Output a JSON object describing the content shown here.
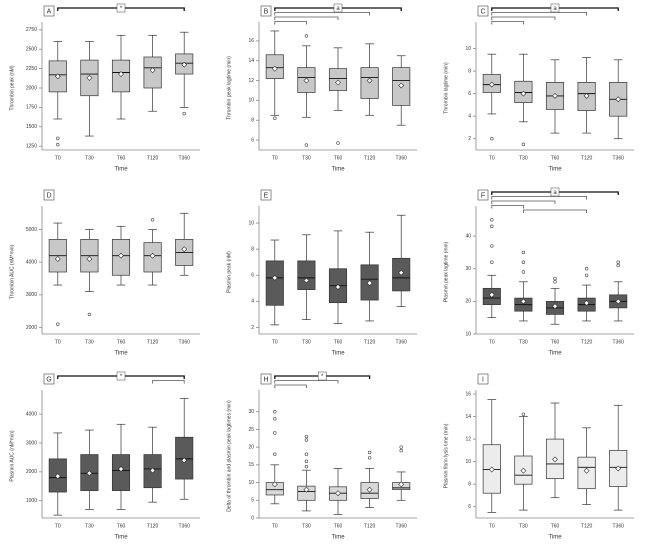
{
  "chart_data": [
    {
      "type": "box",
      "label": "A",
      "y_label": "Thrombin peak (nM)",
      "x_label": "Time",
      "categories": [
        "T0",
        "T30",
        "T60",
        "T120",
        "T360"
      ],
      "color": "#c8c8c8",
      "ylim": [
        1200,
        2800
      ],
      "yticks": [
        1250,
        1500,
        1750,
        2000,
        2250,
        2500,
        2750
      ],
      "boxes": [
        {
          "min": 1600,
          "q1": 1950,
          "median": 2170,
          "q3": 2350,
          "max": 2600,
          "mean": 2150,
          "outliers": [
            1350,
            1270
          ]
        },
        {
          "min": 1380,
          "q1": 1900,
          "median": 2180,
          "q3": 2360,
          "max": 2600,
          "mean": 2130,
          "outliers": []
        },
        {
          "min": 1600,
          "q1": 1950,
          "median": 2200,
          "q3": 2360,
          "max": 2680,
          "mean": 2180,
          "outliers": []
        },
        {
          "min": 1700,
          "q1": 2000,
          "median": 2260,
          "q3": 2400,
          "max": 2680,
          "mean": 2230,
          "outliers": []
        },
        {
          "min": 1750,
          "q1": 2180,
          "median": 2320,
          "q3": 2440,
          "max": 2720,
          "mean": 2300,
          "outliers": [
            1670
          ]
        }
      ],
      "significance": {
        "label": "*",
        "brackets": [
          [
            "T0",
            "T360"
          ]
        ]
      }
    },
    {
      "type": "box",
      "label": "B",
      "y_label": "Thrombin peak lagtime (min)",
      "x_label": "Time",
      "categories": [
        "T0",
        "T30",
        "T60",
        "T120",
        "T360"
      ],
      "color": "#c8c8c8",
      "ylim": [
        5,
        17.5
      ],
      "yticks": [
        6,
        8,
        10,
        12,
        14,
        16
      ],
      "boxes": [
        {
          "min": 8.5,
          "q1": 12.2,
          "median": 13.3,
          "q3": 14.6,
          "max": 17,
          "mean": 13.2,
          "outliers": [
            8.2
          ]
        },
        {
          "min": 8.3,
          "q1": 10.8,
          "median": 12.3,
          "q3": 13.3,
          "max": 15.5,
          "mean": 12,
          "outliers": [
            16.5,
            5.5
          ]
        },
        {
          "min": 9,
          "q1": 11,
          "median": 12.2,
          "q3": 13.2,
          "max": 15.3,
          "mean": 11.8,
          "outliers": [
            5.7
          ]
        },
        {
          "min": 8.5,
          "q1": 10.2,
          "median": 12.3,
          "q3": 13.3,
          "max": 15.7,
          "mean": 12,
          "outliers": []
        },
        {
          "min": 7.5,
          "q1": 9.5,
          "median": 12,
          "q3": 13.3,
          "max": 14.5,
          "mean": 11.5,
          "outliers": []
        }
      ],
      "significance": {
        "label": "a",
        "brackets": [
          [
            "T0",
            "T360"
          ],
          [
            "T0",
            "T120"
          ],
          [
            "T0",
            "T60"
          ],
          [
            "T0",
            "T30"
          ]
        ]
      }
    },
    {
      "type": "box",
      "label": "C",
      "y_label": "Thrombin lagtime (min)",
      "x_label": "Time",
      "categories": [
        "T0",
        "T30",
        "T60",
        "T120",
        "T360"
      ],
      "color": "#c8c8c8",
      "ylim": [
        1,
        12
      ],
      "yticks": [
        2,
        4,
        6,
        8,
        10
      ],
      "boxes": [
        {
          "min": 4.2,
          "q1": 6.1,
          "median": 6.8,
          "q3": 7.7,
          "max": 9.5,
          "mean": 6.8,
          "outliers": [
            2
          ]
        },
        {
          "min": 3.5,
          "q1": 5.2,
          "median": 6.1,
          "q3": 7.1,
          "max": 9.5,
          "mean": 6,
          "outliers": [
            1.5
          ]
        },
        {
          "min": 2.5,
          "q1": 4.6,
          "median": 5.8,
          "q3": 7,
          "max": 9,
          "mean": 5.8,
          "outliers": []
        },
        {
          "min": 2.5,
          "q1": 4.5,
          "median": 6,
          "q3": 7,
          "max": 9.2,
          "mean": 5.8,
          "outliers": []
        },
        {
          "min": 2,
          "q1": 4,
          "median": 5.5,
          "q3": 7,
          "max": 9,
          "mean": 5.5,
          "outliers": []
        }
      ],
      "significance": {
        "label": "a",
        "brackets": [
          [
            "T0",
            "T360"
          ],
          [
            "T0",
            "T120"
          ],
          [
            "T0",
            "T60"
          ],
          [
            "T0",
            "T30"
          ]
        ]
      }
    },
    {
      "type": "box",
      "label": "D",
      "y_label": "Thrombin AUC (nM*min)",
      "x_label": "Time",
      "categories": [
        "T0",
        "T30",
        "T60",
        "T120",
        "T360"
      ],
      "color": "#c8c8c8",
      "ylim": [
        1800,
        5600
      ],
      "yticks": [
        2000,
        3000,
        4000,
        5000
      ],
      "boxes": [
        {
          "min": 3300,
          "q1": 3700,
          "median": 4200,
          "q3": 4700,
          "max": 5200,
          "mean": 4100,
          "outliers": [
            2100
          ]
        },
        {
          "min": 3100,
          "q1": 3700,
          "median": 4200,
          "q3": 4700,
          "max": 5000,
          "mean": 4100,
          "outliers": [
            2400
          ]
        },
        {
          "min": 3300,
          "q1": 3600,
          "median": 4200,
          "q3": 4700,
          "max": 5100,
          "mean": 4200,
          "outliers": []
        },
        {
          "min": 3300,
          "q1": 3700,
          "median": 4200,
          "q3": 4600,
          "max": 5000,
          "mean": 4200,
          "outliers": [
            5300
          ]
        },
        {
          "min": 3600,
          "q1": 3900,
          "median": 4300,
          "q3": 4700,
          "max": 5500,
          "mean": 4400,
          "outliers": []
        }
      ]
    },
    {
      "type": "box",
      "label": "E",
      "y_label": "Plasmin peak (nM)",
      "x_label": "Time",
      "categories": [
        "T0",
        "T30",
        "T60",
        "T120",
        "T360"
      ],
      "color": "#5a5a5a",
      "ylim": [
        1.5,
        11
      ],
      "yticks": [
        2,
        4,
        6,
        8,
        10
      ],
      "boxes": [
        {
          "min": 2.2,
          "q1": 3.7,
          "median": 5.8,
          "q3": 7.1,
          "max": 8.7,
          "mean": 5.8,
          "outliers": []
        },
        {
          "min": 2.6,
          "q1": 4.9,
          "median": 5.8,
          "q3": 7.1,
          "max": 9.1,
          "mean": 5.6,
          "outliers": []
        },
        {
          "min": 2.3,
          "q1": 3.9,
          "median": 5.2,
          "q3": 6.5,
          "max": 9.4,
          "mean": 5.1,
          "outliers": []
        },
        {
          "min": 2.5,
          "q1": 4.1,
          "median": 5.7,
          "q3": 6.8,
          "max": 9.3,
          "mean": 5.4,
          "outliers": []
        },
        {
          "min": 3.6,
          "q1": 4.8,
          "median": 5.8,
          "q3": 7.3,
          "max": 10.6,
          "mean": 6.2,
          "outliers": []
        }
      ]
    },
    {
      "type": "box",
      "label": "F",
      "y_label": "Plasmin peak lagtime (min)",
      "x_label": "Time",
      "categories": [
        "T0",
        "T30",
        "T60",
        "T120",
        "T360"
      ],
      "color": "#5a5a5a",
      "ylim": [
        10,
        48
      ],
      "yticks": [
        10,
        20,
        30,
        40
      ],
      "boxes": [
        {
          "min": 15,
          "q1": 19,
          "median": 21,
          "q3": 24,
          "max": 28,
          "mean": 22,
          "outliers": [
            32,
            37,
            43,
            45
          ]
        },
        {
          "min": 14,
          "q1": 17,
          "median": 19,
          "q3": 21,
          "max": 26,
          "mean": 20,
          "outliers": [
            29,
            32,
            35
          ]
        },
        {
          "min": 13,
          "q1": 16,
          "median": 18,
          "q3": 20,
          "max": 24,
          "mean": 18.5,
          "outliers": [
            26,
            27
          ]
        },
        {
          "min": 14,
          "q1": 17,
          "median": 19,
          "q3": 21,
          "max": 25,
          "mean": 19.5,
          "outliers": [
            28,
            30
          ]
        },
        {
          "min": 14,
          "q1": 18,
          "median": 20,
          "q3": 22,
          "max": 26,
          "mean": 20,
          "outliers": [
            31,
            32
          ]
        }
      ],
      "significance": {
        "label": "a",
        "brackets": [
          [
            "T0",
            "T360"
          ],
          [
            "T0",
            "T120"
          ],
          [
            "T0",
            "T60"
          ],
          [
            "T0",
            "T30"
          ],
          [
            "T30",
            "T120"
          ]
        ]
      }
    },
    {
      "type": "box",
      "label": "G",
      "y_label": "Plasmin AUC (nM*min)",
      "x_label": "Time",
      "categories": [
        "T0",
        "T30",
        "T60",
        "T120",
        "T360"
      ],
      "color": "#5a5a5a",
      "ylim": [
        400,
        4700
      ],
      "yticks": [
        1000,
        2000,
        3000,
        4000
      ],
      "boxes": [
        {
          "min": 500,
          "q1": 1300,
          "median": 1800,
          "q3": 2450,
          "max": 3350,
          "mean": 1850,
          "outliers": []
        },
        {
          "min": 700,
          "q1": 1350,
          "median": 1950,
          "q3": 2600,
          "max": 3450,
          "mean": 1950,
          "outliers": []
        },
        {
          "min": 700,
          "q1": 1350,
          "median": 2050,
          "q3": 2600,
          "max": 3650,
          "mean": 2100,
          "outliers": []
        },
        {
          "min": 950,
          "q1": 1450,
          "median": 2100,
          "q3": 2600,
          "max": 3550,
          "mean": 2050,
          "outliers": []
        },
        {
          "min": 1050,
          "q1": 1750,
          "median": 2450,
          "q3": 3200,
          "max": 4550,
          "mean": 2400,
          "outliers": []
        }
      ],
      "significance": {
        "label": "*",
        "brackets": [
          [
            "T0",
            "T360"
          ],
          [
            "T120",
            "T360"
          ]
        ]
      }
    },
    {
      "type": "box",
      "label": "H",
      "y_label": "Delta of thrombin and plasmin peak lagtimes (min)",
      "x_label": "Time",
      "categories": [
        "T0",
        "T30",
        "T60",
        "T120",
        "T360"
      ],
      "color": "#d8d8d8",
      "ylim": [
        0,
        35
      ],
      "yticks": [
        0,
        5,
        10,
        15,
        20,
        25,
        30
      ],
      "boxes": [
        {
          "min": 4,
          "q1": 6.5,
          "median": 8,
          "q3": 10,
          "max": 15,
          "mean": 9.5,
          "outliers": [
            18,
            24,
            28,
            30
          ]
        },
        {
          "min": 2,
          "q1": 5,
          "median": 7.5,
          "q3": 9,
          "max": 13.5,
          "mean": 8,
          "outliers": [
            14.5,
            16,
            18,
            22,
            23
          ]
        },
        {
          "min": 1,
          "q1": 5,
          "median": 7,
          "q3": 8.8,
          "max": 14,
          "mean": 7,
          "outliers": []
        },
        {
          "min": 3,
          "q1": 5.5,
          "median": 7,
          "q3": 10,
          "max": 14,
          "mean": 8,
          "outliers": [
            17,
            18.5
          ]
        },
        {
          "min": 5,
          "q1": 8,
          "median": 8.5,
          "q3": 10,
          "max": 13,
          "mean": 9.5,
          "outliers": [
            19,
            20
          ]
        }
      ],
      "significance": {
        "label": "*",
        "brackets": [
          [
            "T0",
            "T120"
          ],
          [
            "T0",
            "T60"
          ],
          [
            "T0",
            "T30"
          ]
        ]
      }
    },
    {
      "type": "box",
      "label": "I",
      "y_label": "Plasmin fibrin lysis time (min)",
      "x_label": "Time",
      "categories": [
        "T0",
        "T30",
        "T60",
        "T120",
        "T360"
      ],
      "color": "#ececec",
      "ylim": [
        5,
        16
      ],
      "yticks": [
        6,
        8,
        10,
        12,
        14,
        16
      ],
      "boxes": [
        {
          "min": 5.5,
          "q1": 7.2,
          "median": 9.3,
          "q3": 11.5,
          "max": 15.5,
          "mean": 9.3,
          "outliers": []
        },
        {
          "min": 5.7,
          "q1": 8,
          "median": 8.8,
          "q3": 10.5,
          "max": 14,
          "mean": 9.2,
          "outliers": [
            14.2
          ]
        },
        {
          "min": 6.8,
          "q1": 8.5,
          "median": 9.8,
          "q3": 12,
          "max": 15.2,
          "mean": 10.2,
          "outliers": []
        },
        {
          "min": 6.2,
          "q1": 7.6,
          "median": 9.5,
          "q3": 10.4,
          "max": 13,
          "mean": 9.2,
          "outliers": []
        },
        {
          "min": 5.7,
          "q1": 7.8,
          "median": 9.5,
          "q3": 11,
          "max": 15,
          "mean": 9.4,
          "outliers": []
        }
      ]
    }
  ]
}
